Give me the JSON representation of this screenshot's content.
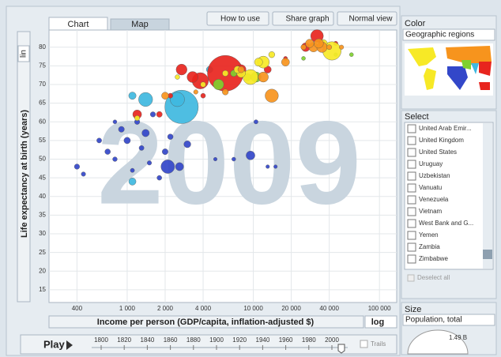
{
  "toolbar": {
    "tabs": [
      "Chart",
      "Map"
    ],
    "buttons": [
      "How to use",
      "Share graph",
      "Normal view"
    ]
  },
  "chart_data": {
    "type": "scatter",
    "year": "2009",
    "y_scale_label": "lin",
    "x_scale_label": "log",
    "ylabel": "Life expectancy at birth (years)",
    "xlabel": "Income per person (GDP/capita, inflation-adjusted $)",
    "log_x": true,
    "grid": true,
    "xlim": [
      240,
      137000
    ],
    "ylim": [
      11.6,
      84.6
    ],
    "xticks": [
      {
        "value": 400,
        "label": "400"
      },
      {
        "value": 1000,
        "label": "1 000"
      },
      {
        "value": 2000,
        "label": "2 000"
      },
      {
        "value": 4000,
        "label": "4 000"
      },
      {
        "value": 10000,
        "label": "10 000"
      },
      {
        "value": 20000,
        "label": "20 000"
      },
      {
        "value": 40000,
        "label": "40 000"
      },
      {
        "value": 100000,
        "label": "100 000"
      }
    ],
    "yticks": [
      15,
      20,
      25,
      30,
      35,
      40,
      45,
      50,
      55,
      60,
      65,
      70,
      75,
      80
    ],
    "series": [
      {
        "color": "#3347c9",
        "x": [
          400,
          450,
          600,
          700,
          800,
          900,
          1000,
          1100,
          1200,
          1300,
          1400,
          1500,
          1600,
          1800,
          2000,
          2200,
          2600,
          3000,
          2100,
          7000,
          9500,
          13000,
          10500,
          15000,
          5000,
          800
        ],
        "values": [
          48,
          46,
          55,
          52,
          50,
          58,
          55,
          47,
          60,
          53,
          57,
          49,
          62,
          45,
          52,
          56,
          48,
          54,
          48,
          50,
          51,
          48,
          60,
          48,
          50,
          60
        ],
        "sizes": [
          10,
          5,
          8,
          12,
          6,
          15,
          20,
          4,
          10,
          8,
          30,
          5,
          10,
          7,
          15,
          12,
          40,
          25,
          150,
          3,
          50,
          2,
          4,
          2,
          2,
          3
        ]
      },
      {
        "color": "#3fb8e0",
        "x": [
          2700,
          2500,
          1400,
          1100,
          1100,
          4500
        ],
        "values": [
          64,
          66,
          66,
          67,
          44,
          74
        ],
        "sizes": [
          1150,
          170,
          160,
          30,
          28,
          20
        ]
      },
      {
        "color": "#e8251e",
        "x": [
          6000,
          3800,
          3300,
          2700,
          32000,
          26000,
          8000,
          13000,
          1800,
          1200,
          35000,
          45000,
          18000,
          4000,
          2200
        ],
        "values": [
          73,
          71,
          72,
          74,
          83,
          80,
          74,
          74,
          62,
          62,
          81,
          81,
          77,
          67,
          67
        ],
        "sizes": [
          1330,
          230,
          90,
          87,
          127,
          48,
          67,
          27,
          14,
          50,
          22,
          5,
          3,
          7,
          8
        ]
      },
      {
        "color": "#7fd02f",
        "x": [
          5300,
          10500,
          9000,
          7000,
          25000,
          45000,
          60000
        ],
        "values": [
          70,
          72,
          72,
          73,
          77,
          78,
          78
        ],
        "sizes": [
          80,
          73,
          30,
          20,
          3,
          2,
          3
        ]
      },
      {
        "color": "#f7e926",
        "x": [
          42000,
          9500,
          12000,
          8000,
          6000,
          4000,
          11000,
          14000,
          36000,
          2500,
          1200,
          7500
        ],
        "values": [
          79,
          72,
          76,
          73,
          73,
          70,
          76,
          78,
          81,
          72,
          61,
          74
        ],
        "sizes": [
          307,
          190,
          110,
          45,
          15,
          10,
          40,
          17,
          33,
          6,
          9,
          28
        ]
      },
      {
        "color": "#f7941d",
        "x": [
          14000,
          30000,
          35000,
          33000,
          28000,
          12000,
          6000,
          2000,
          8000,
          18000,
          3500,
          40000,
          50000,
          25000
        ],
        "values": [
          67,
          80,
          80,
          81,
          81,
          72,
          68,
          67,
          74,
          76,
          68,
          80,
          80,
          80
        ],
        "sizes": [
          140,
          60,
          80,
          60,
          45,
          72,
          16,
          27,
          20,
          38,
          5,
          8,
          5,
          10
        ]
      }
    ]
  },
  "player": {
    "play": "Play",
    "years": [
      "1800",
      "1820",
      "1840",
      "1860",
      "1880",
      "1900",
      "1920",
      "1940",
      "1960",
      "1980",
      "2000"
    ],
    "trails": "Trails"
  },
  "color_panel": {
    "title": "Color",
    "indicator": "Geographic regions"
  },
  "select_panel": {
    "title": "Select",
    "items": [
      "United Arab Emir...",
      "United Kingdom",
      "United States",
      "Uruguay",
      "Uzbekistan",
      "Vanuatu",
      "Venezuela",
      "Vietnam",
      "West Bank and G...",
      "Yemen",
      "Zambia",
      "Zimbabwe"
    ],
    "deselect": "Deselect all"
  },
  "size_panel": {
    "title": "Size",
    "indicator": "Population, total",
    "max": "1.49 B"
  }
}
